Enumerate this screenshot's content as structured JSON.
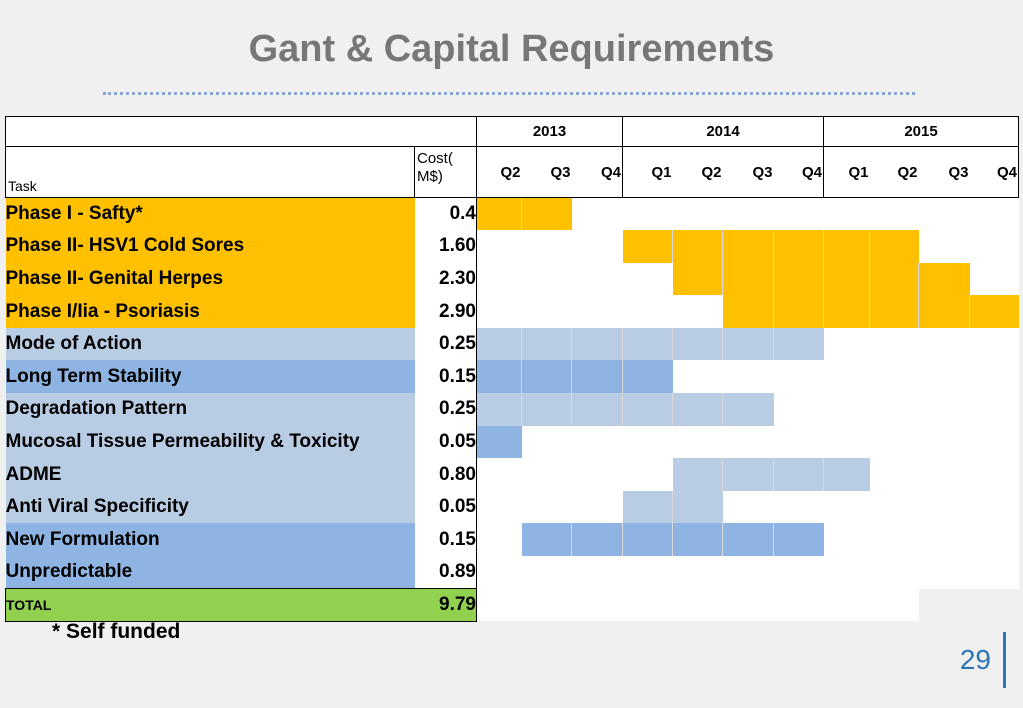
{
  "title": "Gant & Capital Requirements",
  "header": {
    "years": [
      "2013",
      "2014",
      "2015"
    ],
    "task_label": "Task",
    "cost_label": "Cost( M$)",
    "quarters": [
      "Q2",
      "Q3",
      "Q4",
      "Q1",
      "Q2",
      "Q3",
      "Q4",
      "Q1",
      "Q2",
      "Q3",
      "Q4"
    ]
  },
  "colors": {
    "gold": "#ffc000",
    "light_blue": "#b8cce4",
    "medium_blue": "#8db4e2",
    "green": "#92d050"
  },
  "rows": [
    {
      "task": "Phase I - Safty*",
      "cost": "0.4",
      "color": "gold",
      "bar": {
        "start": 0,
        "end": 1
      },
      "label_color": "gold"
    },
    {
      "task": "Phase II- HSV1 Cold Sores",
      "cost": "1.60",
      "color": "gold",
      "bar": {
        "start": 3,
        "end": 8
      },
      "label_color": "gold"
    },
    {
      "task": "Phase II- Genital Herpes",
      "cost": "2.30",
      "color": "gold",
      "bar": {
        "start": 4,
        "end": 9
      },
      "label_color": "gold"
    },
    {
      "task": "Phase I/Iia - Psoriasis",
      "cost": "2.90",
      "color": "gold",
      "bar": {
        "start": 5,
        "end": 10
      },
      "label_color": "gold"
    },
    {
      "task": "Mode of Action",
      "cost": "0.25",
      "color": "light_blue",
      "bar": {
        "start": 0,
        "end": 6
      },
      "label_color": "light_blue"
    },
    {
      "task": "Long Term Stability",
      "cost": "0.15",
      "color": "medium_blue",
      "bar": {
        "start": 0,
        "end": 3
      },
      "label_color": "medium_blue"
    },
    {
      "task": "Degradation Pattern",
      "cost": "0.25",
      "color": "light_blue",
      "bar": {
        "start": 0,
        "end": 5
      },
      "label_color": "light_blue"
    },
    {
      "task": "Mucosal Tissue Permeability & Toxicity",
      "cost": "0.05",
      "color": "medium_blue",
      "bar": {
        "start": 0,
        "end": 0
      },
      "label_color": "light_blue"
    },
    {
      "task": "ADME",
      "cost": "0.80",
      "color": "light_blue",
      "bar": {
        "start": 4,
        "end": 7
      },
      "label_color": "light_blue"
    },
    {
      "task": "Anti Viral Specificity",
      "cost": "0.05",
      "color": "light_blue",
      "bar": {
        "start": 3,
        "end": 4
      },
      "label_color": "light_blue"
    },
    {
      "task": "New Formulation",
      "cost": "0.15",
      "color": "medium_blue",
      "bar": {
        "start": 1,
        "end": 6
      },
      "label_color": "medium_blue"
    },
    {
      "task": "Unpredictable",
      "cost": "0.89",
      "color": "none",
      "bar": null,
      "label_color": "medium_blue"
    }
  ],
  "total": {
    "label": "TOTAL",
    "cost": "9.79"
  },
  "footnote": "* Self funded",
  "page_number": "29"
}
